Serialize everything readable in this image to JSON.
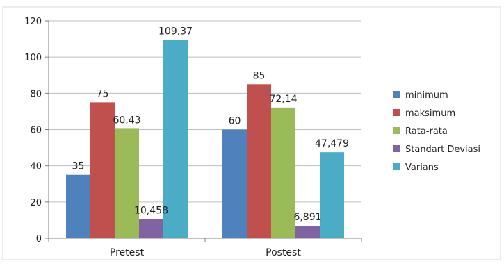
{
  "chart_data": {
    "type": "bar",
    "categories": [
      "Pretest",
      "Postest"
    ],
    "series": [
      {
        "name": "minimum",
        "values": [
          35,
          60
        ],
        "labels": [
          "35",
          "60"
        ],
        "color": "#4F81BD"
      },
      {
        "name": "maksimum",
        "values": [
          75,
          85
        ],
        "labels": [
          "75",
          "85"
        ],
        "color": "#C0504D"
      },
      {
        "name": "Rata-rata",
        "values": [
          60.43,
          72.14
        ],
        "labels": [
          "60,43",
          "72,14"
        ],
        "color": "#9BBB59"
      },
      {
        "name": "Standart Deviasi",
        "values": [
          10.458,
          6.891
        ],
        "labels": [
          "10,458",
          "6,891"
        ],
        "color": "#8064A2"
      },
      {
        "name": "Varians",
        "values": [
          109.37,
          47.479
        ],
        "labels": [
          "109,37",
          "47,479"
        ],
        "color": "#4BACC6"
      }
    ],
    "yticks": [
      "0",
      "20",
      "40",
      "60",
      "80",
      "100",
      "120"
    ],
    "ylim": [
      0,
      120
    ],
    "grid": true,
    "legend_position": "right",
    "title": "",
    "xlabel": "",
    "ylabel": ""
  }
}
